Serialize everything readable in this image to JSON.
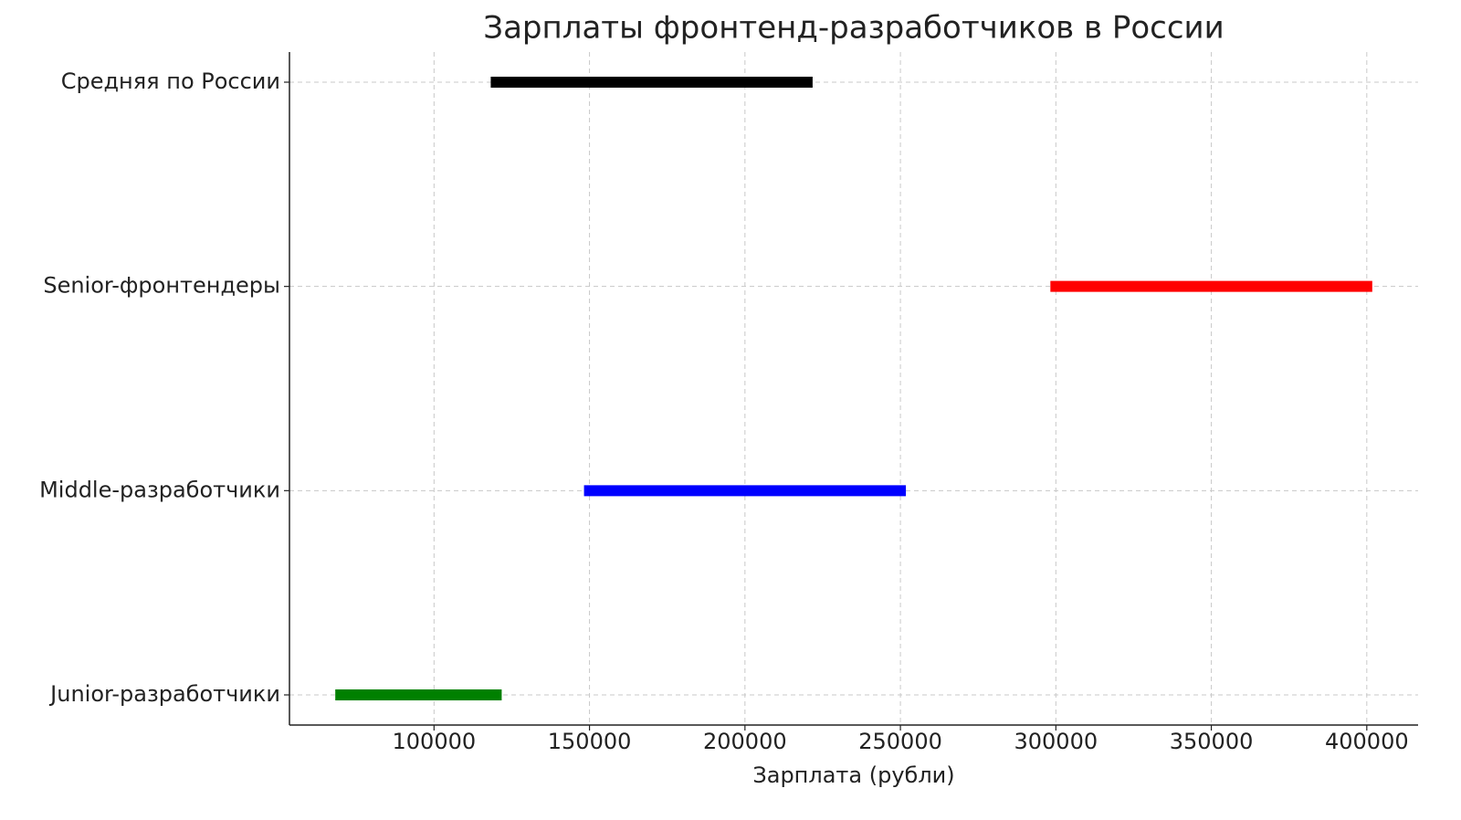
{
  "chart_data": {
    "type": "range",
    "title": "Зарплаты фронтенд-разработчиков в России",
    "x_label": "Зарплата (рубли)",
    "categories": [
      "Junior-разработчики",
      "Middle-разработчики",
      "Senior-фронтендеры",
      "Средняя по России"
    ],
    "starts": [
      70000,
      150000,
      300000,
      120000
    ],
    "ends": [
      120000,
      250000,
      400000,
      220000
    ],
    "colors": [
      "#008000",
      "#0000ff",
      "#ff0000",
      "#000000"
    ],
    "xlim": [
      53500,
      416500
    ],
    "xticks": [
      100000,
      150000,
      200000,
      250000,
      300000,
      350000,
      400000
    ],
    "grid": true
  }
}
